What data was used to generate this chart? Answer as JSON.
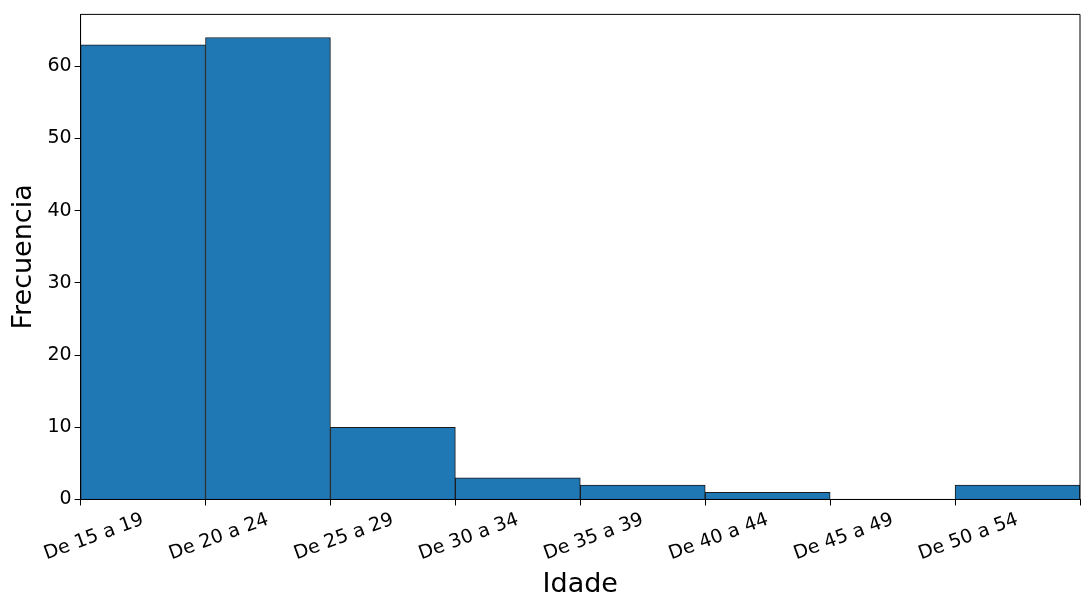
{
  "chart_data": {
    "type": "bar",
    "xlabel": "Idade",
    "ylabel": "Frecuencia",
    "categories": [
      "De 15 a 19",
      "De 20 a 24",
      "De 25 a 29",
      "De 30 a 34",
      "De 35 a 39",
      "De 40 a 44",
      "De 45 a 49",
      "De 50 a 54"
    ],
    "values": [
      63,
      64,
      10,
      3,
      2,
      1,
      0,
      2
    ],
    "color": "#1f77b4",
    "ylim": [
      0,
      67.2
    ],
    "yticks": [
      0,
      10,
      20,
      30,
      40,
      50,
      60
    ]
  }
}
